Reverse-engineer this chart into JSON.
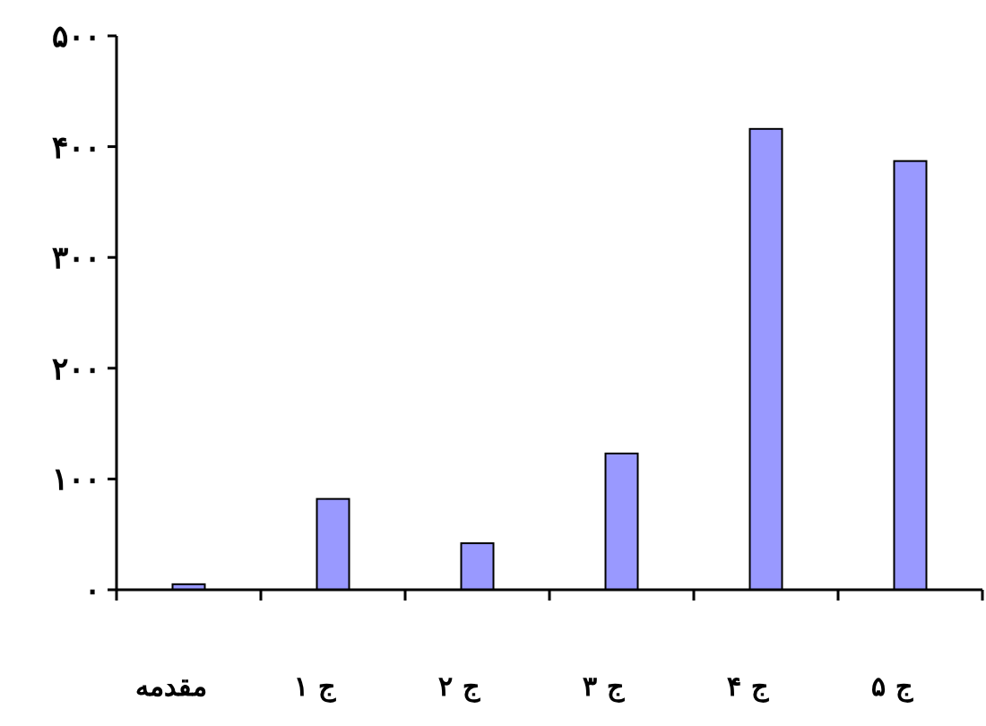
{
  "chart_data": {
    "type": "bar",
    "categories": [
      "مقدمه",
      "ج ۱",
      "ج ۲",
      "ج ۳",
      "ج ۴",
      "ج ۵"
    ],
    "values": [
      5,
      82,
      42,
      123,
      416,
      387
    ],
    "color": "#9999ff",
    "ylim": [
      0,
      500
    ],
    "yticks": [
      {
        "value": 0,
        "label": "۰"
      },
      {
        "value": 100,
        "label": "۱۰۰"
      },
      {
        "value": 200,
        "label": "۲۰۰"
      },
      {
        "value": 300,
        "label": "۳۰۰"
      },
      {
        "value": 400,
        "label": "۴۰۰"
      },
      {
        "value": 500,
        "label": "۵۰۰"
      }
    ],
    "grid": false
  }
}
